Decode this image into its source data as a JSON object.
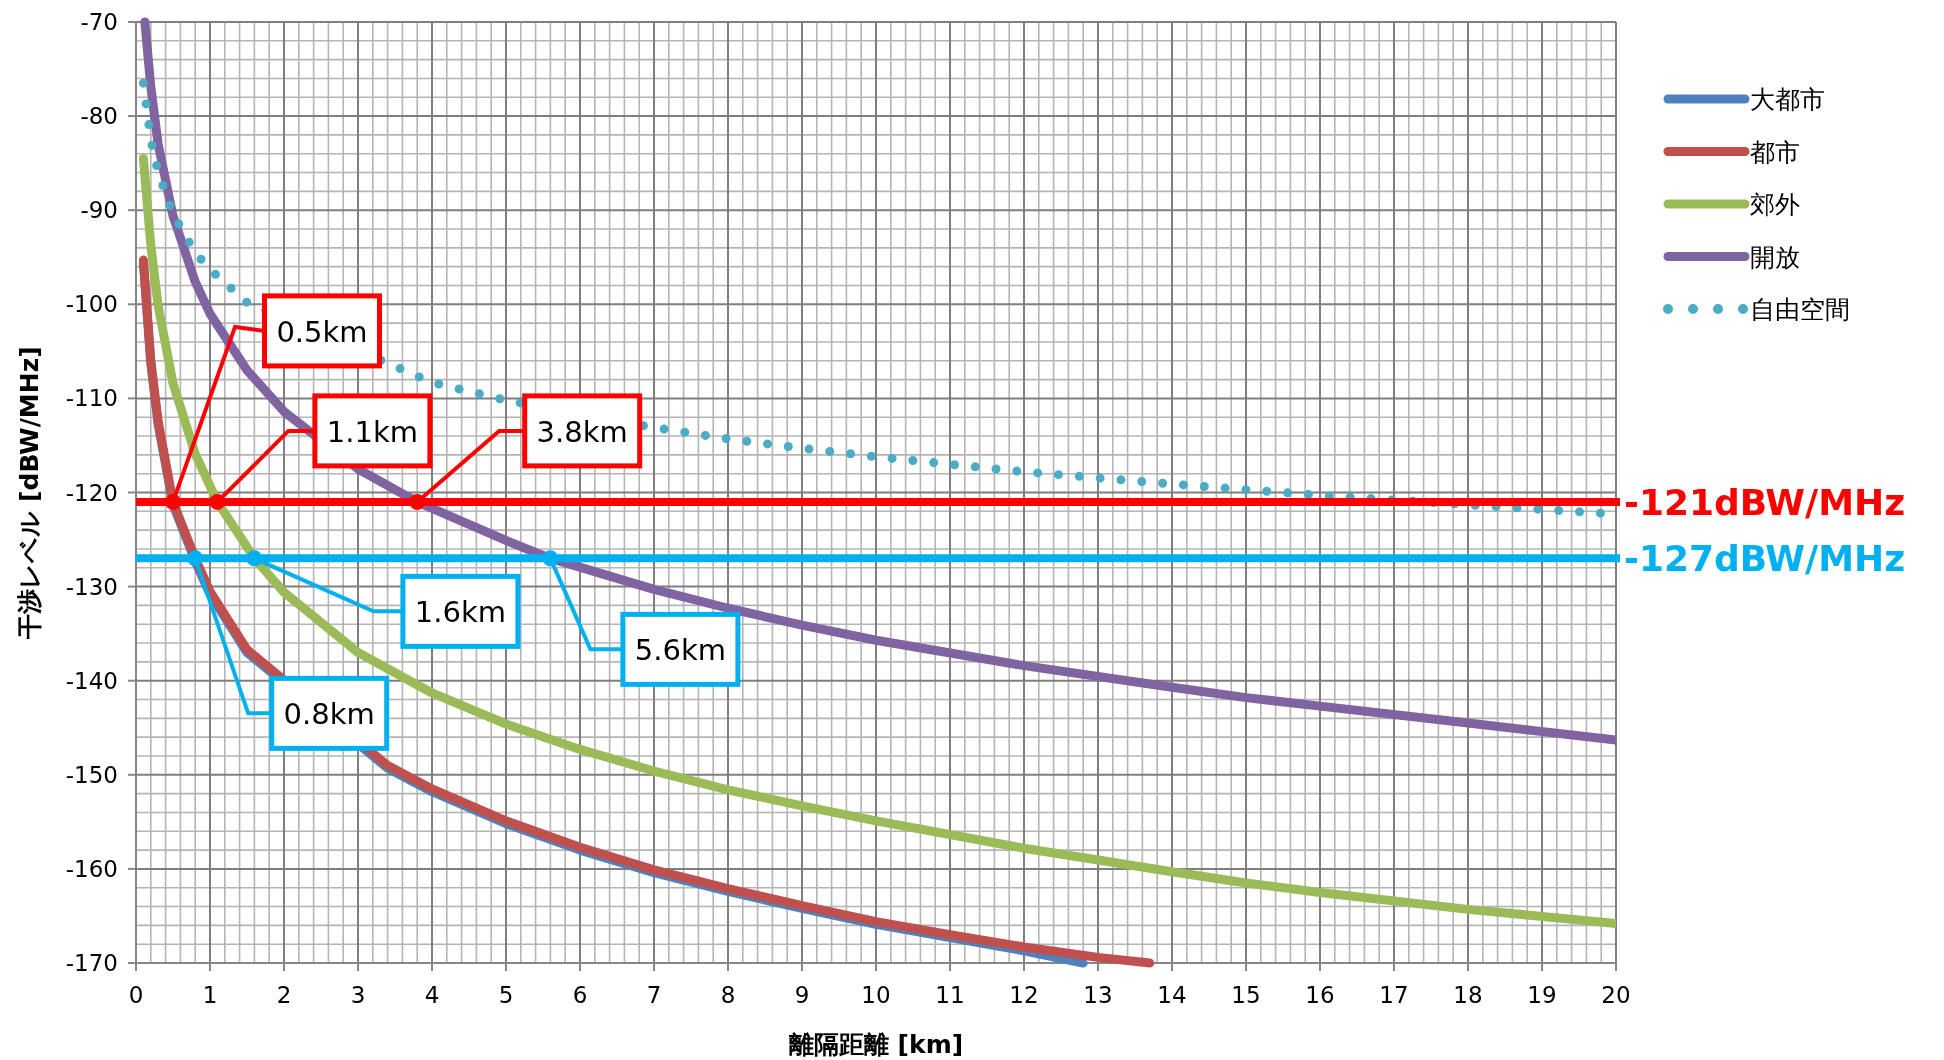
{
  "chart_data": {
    "type": "line",
    "xlabel": "離隔距離 [km]",
    "ylabel": "干渉レベル [dBW/MHz]",
    "xlim": [
      0,
      20
    ],
    "xticks": [
      0,
      1,
      2,
      3,
      4,
      5,
      6,
      7,
      8,
      9,
      10,
      11,
      12,
      13,
      14,
      15,
      16,
      17,
      18,
      19,
      20
    ],
    "ylim": [
      -170,
      -70
    ],
    "yticks": [
      -170,
      -160,
      -150,
      -140,
      -130,
      -120,
      -110,
      -100,
      -90,
      -80,
      -70
    ],
    "grid": true,
    "legend": "right",
    "series": [
      {
        "name": "大都市",
        "color": "#4f81bd",
        "x": [
          0.1,
          0.2,
          0.3,
          0.5,
          0.8,
          1,
          1.5,
          3.4,
          4,
          5,
          6,
          7,
          8,
          9,
          10,
          11,
          12,
          12.8
        ],
        "values": [
          -95.6,
          -106.3,
          -112.8,
          -121.3,
          -127.3,
          -130.8,
          -137,
          -149.3,
          -151.8,
          -155.2,
          -158,
          -160.4,
          -162.4,
          -164.2,
          -165.9,
          -167.3,
          -168.7,
          -170
        ]
      },
      {
        "name": "都市",
        "color": "#c0504d",
        "x": [
          0.1,
          0.2,
          0.3,
          0.5,
          0.8,
          1,
          1.5,
          3.4,
          4,
          5,
          6,
          7,
          8,
          9,
          10,
          11,
          12,
          13,
          13.7
        ],
        "values": [
          -95.3,
          -106,
          -112.5,
          -121,
          -127,
          -130.5,
          -136.7,
          -149,
          -151.5,
          -154.9,
          -157.7,
          -160.1,
          -162.1,
          -163.9,
          -165.6,
          -167,
          -168.3,
          -169.4,
          -170
        ]
      },
      {
        "name": "郊外",
        "color": "#9bbb59",
        "x": [
          0.1,
          0.2,
          0.3,
          0.5,
          0.8,
          1.1,
          1.6,
          2,
          3,
          4,
          5,
          6,
          7,
          8,
          9,
          10,
          12,
          14,
          15,
          16,
          18,
          20
        ],
        "values": [
          -84.5,
          -93.7,
          -100.2,
          -108.4,
          -115.9,
          -121,
          -127,
          -130.6,
          -137,
          -141.3,
          -144.6,
          -147.3,
          -149.6,
          -151.6,
          -153.3,
          -154.9,
          -157.8,
          -160.3,
          -161.5,
          -162.5,
          -164.3,
          -165.8
        ]
      },
      {
        "name": "開放",
        "color": "#8064a2",
        "x": [
          0.12,
          0.15,
          0.2,
          0.3,
          0.5,
          0.8,
          1,
          1.5,
          2,
          3,
          3.8,
          5,
          5.6,
          7,
          8,
          9,
          10,
          12,
          14,
          15,
          16,
          18,
          20
        ],
        "values": [
          -70,
          -72.6,
          -76.9,
          -83,
          -90.6,
          -97.6,
          -101,
          -107,
          -111.4,
          -117.5,
          -121,
          -125.1,
          -127,
          -130.3,
          -132.3,
          -134.1,
          -135.7,
          -138.4,
          -140.7,
          -141.8,
          -142.7,
          -144.5,
          -146.3
        ]
      },
      {
        "name": "自由空間",
        "color": "#4bacc6",
        "line_style": "dotted",
        "x": [
          0.1,
          0.2,
          0.3,
          0.5,
          0.8,
          1,
          1.5,
          4,
          5,
          7,
          8,
          9,
          10,
          12,
          14,
          16,
          18,
          19.8
        ],
        "values": [
          -76.5,
          -82.5,
          -86,
          -90.4,
          -94.5,
          -96.3,
          -99.8,
          -108.3,
          -110.2,
          -113.1,
          -114.3,
          -115.3,
          -116.2,
          -117.8,
          -119.1,
          -120.3,
          -121.3,
          -122.2
        ]
      }
    ],
    "ref_lines": [
      {
        "axis": "y",
        "value": -121,
        "label": "-121dBW/MHz",
        "color": "#ff0000"
      },
      {
        "axis": "y",
        "value": -127,
        "label": "-127dBW/MHz",
        "color": "#00b0f0"
      }
    ],
    "annotations": [
      {
        "text": "0.5km",
        "x": 0.5,
        "y": -121
      },
      {
        "text": "1.1km",
        "x": 1.1,
        "y": -121
      },
      {
        "text": "3.8km",
        "x": 3.8,
        "y": -121
      },
      {
        "text": "0.8km",
        "x": 0.8,
        "y": -127
      },
      {
        "text": "1.6km",
        "x": 1.6,
        "y": -127
      },
      {
        "text": "5.6km",
        "x": 5.6,
        "y": -127
      }
    ]
  }
}
